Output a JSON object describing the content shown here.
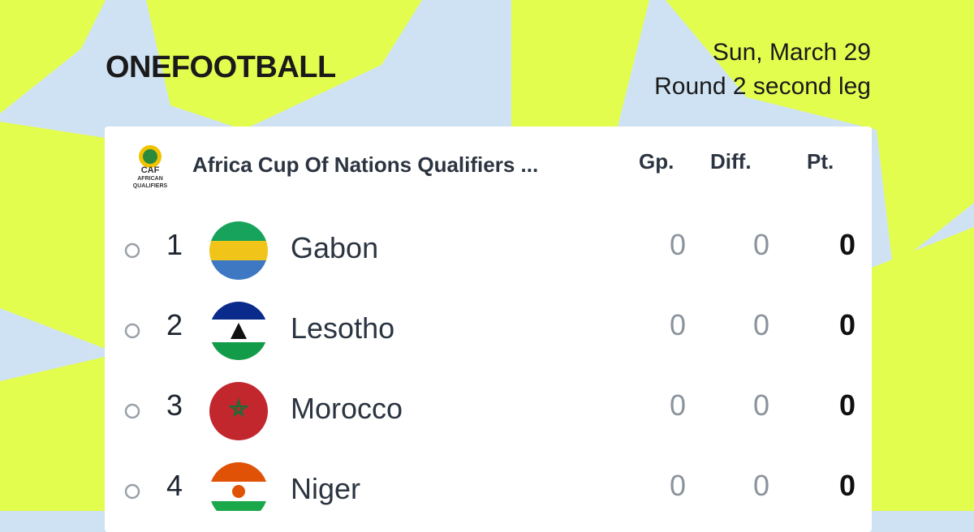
{
  "header": {
    "brand": "ONEFOOTBALL",
    "date": "Sun, March 29",
    "round": "Round 2 second leg"
  },
  "table": {
    "logo": {
      "abbr": "CAF",
      "line1": "AFRICAN",
      "line2": "QUALIFIERS"
    },
    "competition": "Africa Cup Of Nations Qualifiers ...",
    "columns": [
      "Gp.",
      "Diff.",
      "Pt."
    ],
    "rows": [
      {
        "position": 1,
        "team": "Gabon",
        "played": 0,
        "diff": 0,
        "points": 0
      },
      {
        "position": 2,
        "team": "Lesotho",
        "played": 0,
        "diff": 0,
        "points": 0
      },
      {
        "position": 3,
        "team": "Morocco",
        "played": 0,
        "diff": 0,
        "points": 0
      },
      {
        "position": 4,
        "team": "Niger",
        "played": 0,
        "diff": 0,
        "points": 0
      }
    ]
  }
}
